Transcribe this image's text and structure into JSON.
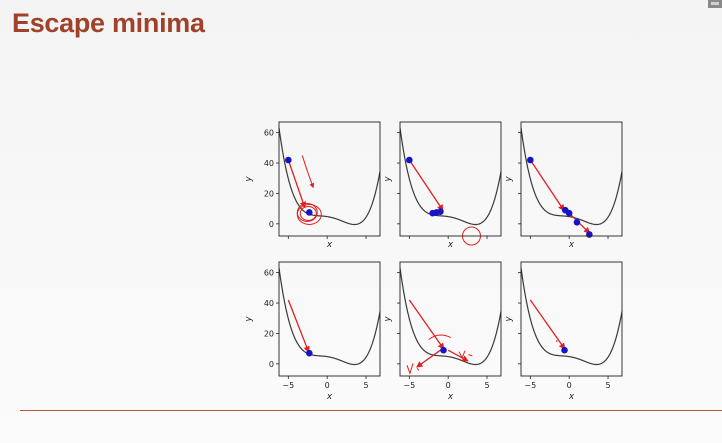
{
  "slide": {
    "title": "Escape minima"
  },
  "colors": {
    "title": "#a0412a",
    "rule": "#b9593f",
    "curve": "#3a3a3a",
    "point": "#1414c8",
    "annotation": "#e02020"
  },
  "chart_data": [
    {
      "type": "line",
      "xlabel": "x",
      "ylabel": "y",
      "xlim": [
        -6.2,
        6.8
      ],
      "ylim": [
        -8,
        67
      ],
      "xticks": [
        -5,
        0,
        5
      ],
      "yticks": [
        0,
        20,
        40,
        60
      ],
      "show_xticks": false,
      "show_yticks": true,
      "points": [
        [
          -5,
          42
        ],
        [
          -2.3,
          7.5
        ]
      ],
      "arrows": [
        [
          -5,
          42,
          -2.9,
          11
        ]
      ],
      "note": "hand-drawn circles"
    },
    {
      "type": "line",
      "xlabel": "x",
      "ylabel": "y",
      "xlim": [
        -6.2,
        6.8
      ],
      "ylim": [
        -8,
        67
      ],
      "xticks": [
        -5,
        0,
        5
      ],
      "yticks": [
        0,
        20,
        40,
        60
      ],
      "show_xticks": false,
      "show_yticks": false,
      "points": [
        [
          -5,
          42
        ],
        [
          -2,
          7
        ],
        [
          -1.5,
          7.5
        ],
        [
          -1,
          8
        ]
      ],
      "arrows": [
        [
          -5,
          42,
          -0.7,
          9
        ]
      ]
    },
    {
      "type": "line",
      "xlabel": "x",
      "ylabel": "y",
      "xlim": [
        -6.2,
        6.8
      ],
      "ylim": [
        -8,
        67
      ],
      "xticks": [
        -5,
        0,
        5
      ],
      "yticks": [
        0,
        20,
        40,
        60
      ],
      "show_xticks": false,
      "show_yticks": false,
      "points": [
        [
          -5,
          42
        ],
        [
          -0.5,
          9
        ],
        [
          0,
          7
        ],
        [
          1,
          1
        ],
        [
          2.6,
          -7
        ]
      ],
      "arrows": [
        [
          -5,
          42,
          -0.7,
          9
        ],
        [
          0,
          7,
          2.6,
          -6
        ]
      ]
    },
    {
      "type": "line",
      "xlabel": "x",
      "ylabel": "y",
      "xlim": [
        -6.2,
        6.8
      ],
      "ylim": [
        -8,
        67
      ],
      "xticks": [
        -5,
        0,
        5
      ],
      "yticks": [
        0,
        20,
        40,
        60
      ],
      "show_xticks": true,
      "show_yticks": true,
      "points": [
        [
          -2.3,
          7
        ]
      ],
      "arrows": [
        [
          -5,
          42,
          -2.4,
          8
        ]
      ]
    },
    {
      "type": "line",
      "xlabel": "x",
      "ylabel": "y",
      "xlim": [
        -6.2,
        6.8
      ],
      "ylim": [
        -8,
        67
      ],
      "xticks": [
        -5,
        0,
        5
      ],
      "yticks": [
        0,
        20,
        40,
        60
      ],
      "show_xticks": true,
      "show_yticks": false,
      "points": [
        [
          -0.6,
          9
        ]
      ],
      "arrows": [
        [
          -5,
          42,
          -0.6,
          10
        ],
        [
          -1,
          9,
          -4,
          -2
        ],
        [
          0,
          9,
          2.5,
          2
        ]
      ],
      "note": "hand-drawn V marks"
    },
    {
      "type": "line",
      "xlabel": "x",
      "ylabel": "y",
      "xlim": [
        -6.2,
        6.8
      ],
      "ylim": [
        -8,
        67
      ],
      "xticks": [
        -5,
        0,
        5
      ],
      "yticks": [
        0,
        20,
        40,
        60
      ],
      "show_xticks": true,
      "show_yticks": false,
      "points": [
        [
          -0.6,
          9
        ]
      ],
      "arrows": [
        [
          -5,
          42,
          -0.6,
          10
        ]
      ]
    }
  ]
}
